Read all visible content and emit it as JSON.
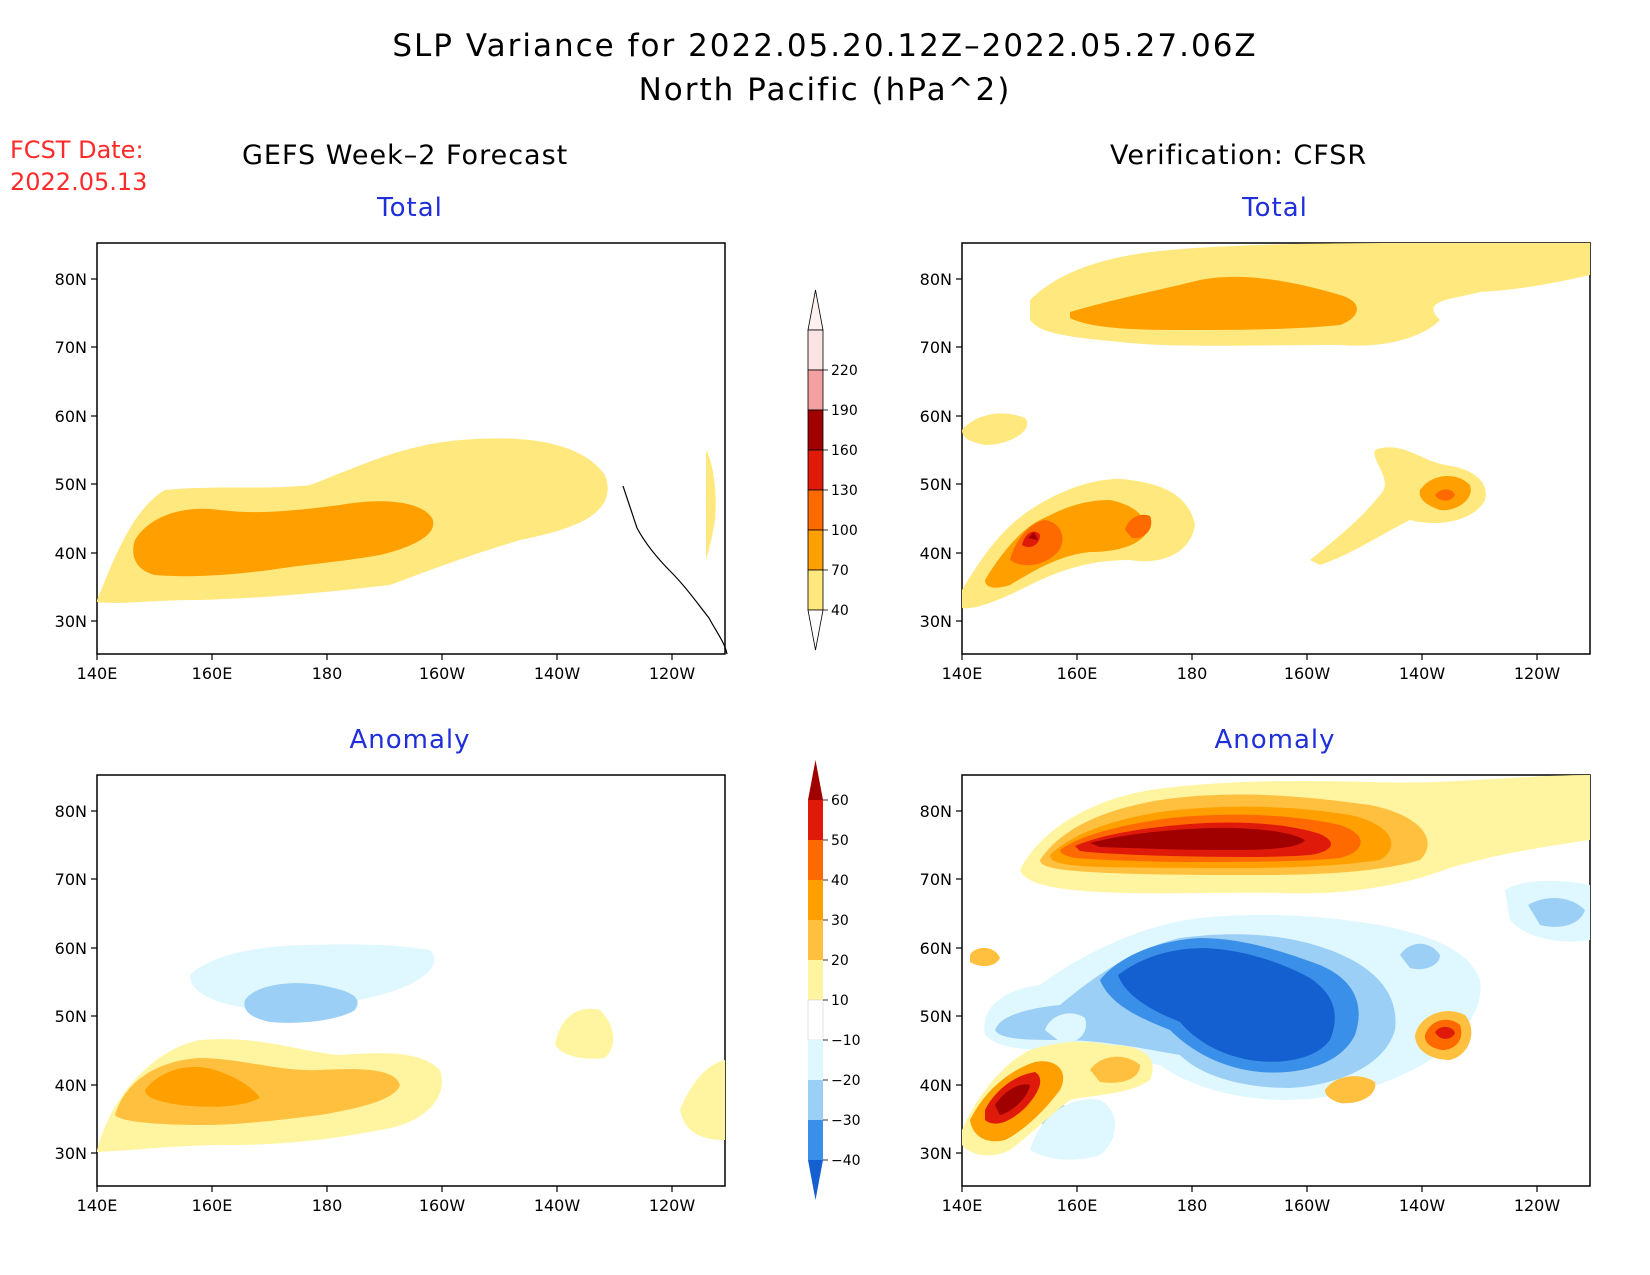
{
  "title_line1": "SLP Variance for 2022.05.20.12Z–2022.05.27.06Z",
  "title_line2": "North Pacific (hPa^2)",
  "fcst_label": "FCST Date:",
  "fcst_date": "2022.05.13",
  "left_header": "GEFS Week–2 Forecast",
  "right_header": "Verification: CFSR",
  "panels": [
    {
      "label": "Total"
    },
    {
      "label": "Total"
    },
    {
      "label": "Anomaly"
    },
    {
      "label": "Anomaly"
    }
  ],
  "lat_ticks": [
    "80N",
    "70N",
    "60N",
    "50N",
    "40N",
    "30N"
  ],
  "lon_ticks": [
    "140E",
    "160E",
    "180",
    "160W",
    "140W",
    "120W"
  ],
  "total_colorbar": {
    "labels": [
      "220",
      "190",
      "160",
      "130",
      "100",
      "70",
      "40"
    ],
    "colors": [
      "#fbe3e3",
      "#f2a0a0",
      "#a00000",
      "#e01a0a",
      "#ff6a00",
      "#ffa000",
      "#ffe87e"
    ]
  },
  "anomaly_colorbar": {
    "labels": [
      "60",
      "50",
      "40",
      "30",
      "20",
      "10",
      "−10",
      "−20",
      "−30",
      "−40"
    ],
    "colors": [
      "#a00000",
      "#e01a0a",
      "#ff6a00",
      "#ffa000",
      "#ffc040",
      "#fff5a0",
      "#ffffff",
      "#dff8ff",
      "#9ccff5",
      "#3a8fe8",
      "#1560d0"
    ]
  }
}
